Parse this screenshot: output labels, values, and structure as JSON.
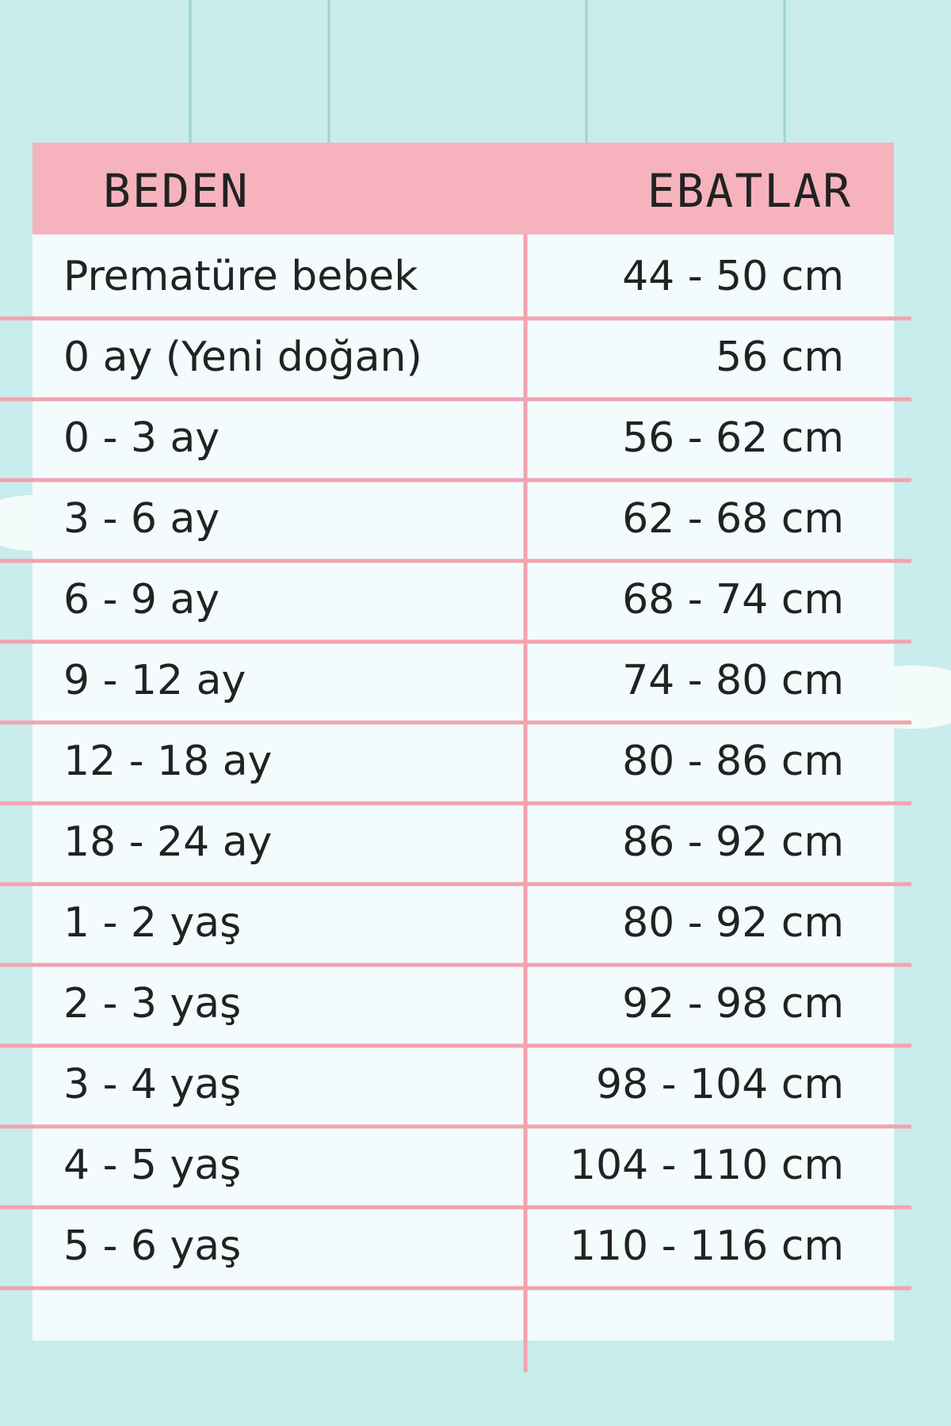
{
  "header": {
    "columns": [
      "BEDEN",
      "EBATLAR"
    ]
  },
  "table": {
    "rows": [
      [
        "Prematüre bebek",
        "44 - 50 cm"
      ],
      [
        "0 ay (Yeni doğan)",
        "56 cm"
      ],
      [
        "0 - 3 ay",
        "56 - 62 cm"
      ],
      [
        "3 - 6 ay",
        "62 - 68 cm"
      ],
      [
        "6 - 9 ay",
        "68 - 74 cm"
      ],
      [
        "9 - 12 ay",
        "74 - 80 cm"
      ],
      [
        "12 - 18 ay",
        "80 - 86 cm"
      ],
      [
        "18 - 24 ay",
        "86 - 92 cm"
      ],
      [
        "1 - 2 yaş",
        "80 - 92 cm"
      ],
      [
        "2 - 3 yaş",
        "92 - 98 cm"
      ],
      [
        "3 - 4 yaş",
        "98 - 104 cm"
      ],
      [
        "4 - 5 yaş",
        "104 - 110 cm"
      ],
      [
        "5 - 6 yaş",
        "110 - 116 cm"
      ]
    ]
  }
}
